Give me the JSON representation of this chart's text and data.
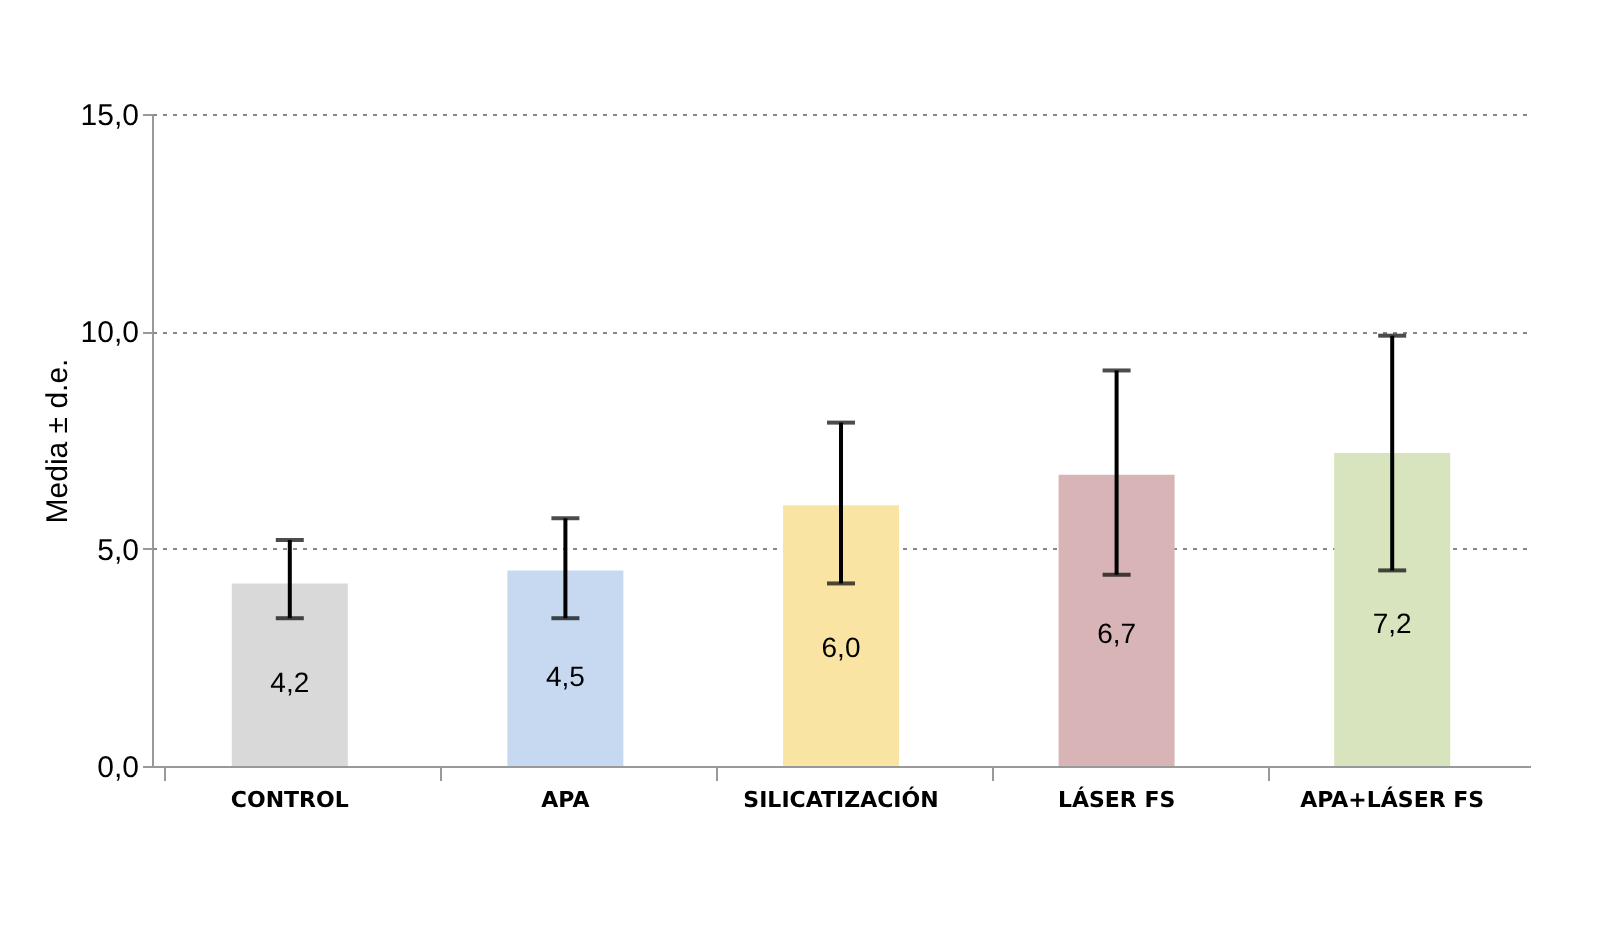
{
  "chart_data": {
    "type": "bar",
    "ylabel": "Media ± d.e.",
    "categories": [
      "CONTROL",
      "APA",
      "SILICATIZACIÓN",
      "LÁSER FS",
      "APA+LÁSER FS"
    ],
    "values": [
      4.2,
      4.5,
      6.0,
      6.7,
      7.2
    ],
    "colors": [
      "#d9d9d9",
      "#c6d9f1",
      "#f9e4a3",
      "#d8b4b6",
      "#d7e4bd"
    ],
    "errors": [
      [
        3.4,
        5.2
      ],
      [
        3.4,
        5.7
      ],
      [
        4.2,
        7.9
      ],
      [
        4.4,
        9.1
      ],
      [
        4.5,
        9.9
      ]
    ],
    "value_labels": [
      "4,2",
      "4,5",
      "6,0",
      "6,7",
      "7,2"
    ],
    "ylim": [
      0,
      15
    ],
    "yticks": [
      {
        "value": 0,
        "label": "0,0"
      },
      {
        "value": 5,
        "label": "5,0"
      },
      {
        "value": 10,
        "label": "10,0"
      },
      {
        "value": 15,
        "label": "15,0"
      }
    ],
    "grid": "y"
  }
}
